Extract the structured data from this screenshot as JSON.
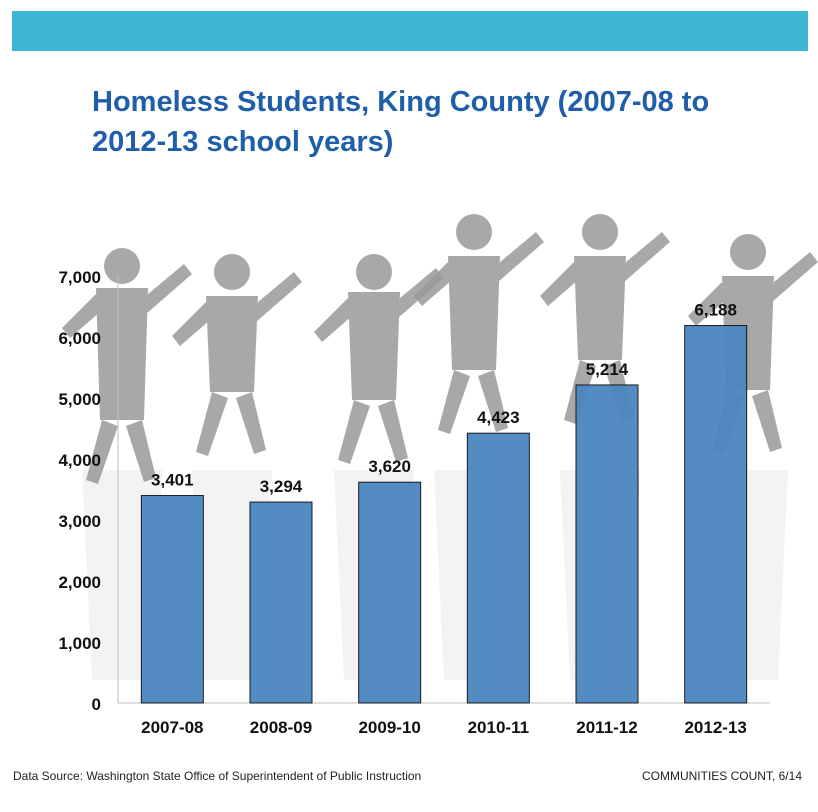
{
  "header": {
    "banner_color": "#3fb5d4"
  },
  "chart_data": {
    "type": "bar",
    "title": "Homeless Students, King County (2007-08 to 2012-13 school years)",
    "categories": [
      "2007-08",
      "2008-09",
      "2009-10",
      "2010-11",
      "2011-12",
      "2012-13"
    ],
    "values": [
      3401,
      3294,
      3620,
      4423,
      5214,
      6188
    ],
    "value_labels": [
      "3,401",
      "3,294",
      "3,620",
      "4,423",
      "5,214",
      "6,188"
    ],
    "yticks": [
      "0",
      "1,000",
      "2,000",
      "3,000",
      "4,000",
      "5,000",
      "6,000",
      "7,000"
    ],
    "ytick_values": [
      0,
      1000,
      2000,
      3000,
      4000,
      5000,
      6000,
      7000
    ],
    "ylim": [
      0,
      7000
    ],
    "xlabel": "",
    "ylabel": "",
    "grid": false,
    "legend": "none",
    "bar_color": "#4a86bf",
    "silhouette_color": "#9a9a9a"
  },
  "footer": {
    "source": "Data Source: Washington State Office of Superintendent of Public Instruction",
    "credit": "COMMUNITIES COUNT, 6/14"
  }
}
